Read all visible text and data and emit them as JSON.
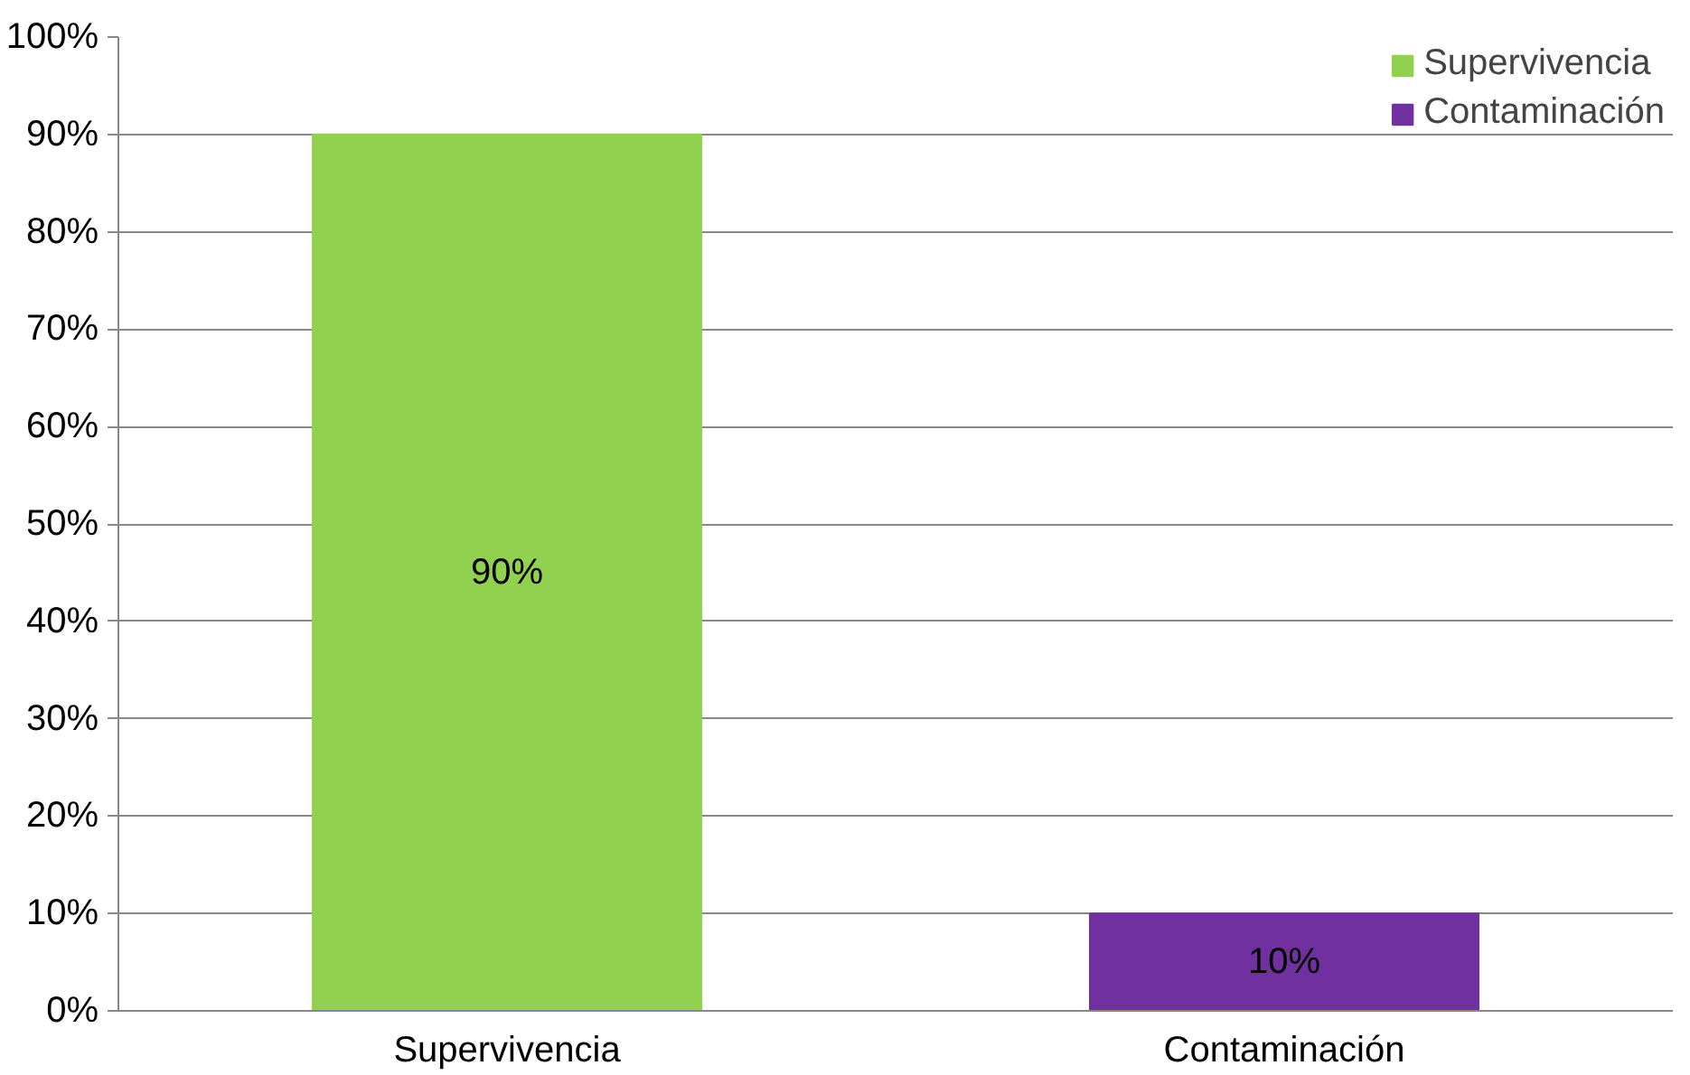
{
  "chart_data": {
    "type": "bar",
    "stacked": true,
    "categories": [
      "Supervivencia",
      "Contaminación"
    ],
    "series": [
      {
        "name": "Supervivencia",
        "color": "#92d050",
        "values": [
          90,
          null
        ],
        "value_labels": [
          "90%",
          null
        ]
      },
      {
        "name": "Contaminación",
        "color": "#7030a0",
        "values": [
          null,
          10
        ],
        "value_labels": [
          null,
          "10%"
        ]
      }
    ],
    "ylim": [
      0,
      100
    ],
    "yticks": [
      {
        "value": 0,
        "label": "0%"
      },
      {
        "value": 10,
        "label": "10%"
      },
      {
        "value": 20,
        "label": "20%"
      },
      {
        "value": 30,
        "label": "30%"
      },
      {
        "value": 40,
        "label": "40%"
      },
      {
        "value": 50,
        "label": "50%"
      },
      {
        "value": 60,
        "label": "60%"
      },
      {
        "value": 70,
        "label": "70%"
      },
      {
        "value": 80,
        "label": "80%"
      },
      {
        "value": 90,
        "label": "90%"
      },
      {
        "value": 100,
        "label": "100%"
      }
    ],
    "grid": "y",
    "legend": "top right"
  }
}
